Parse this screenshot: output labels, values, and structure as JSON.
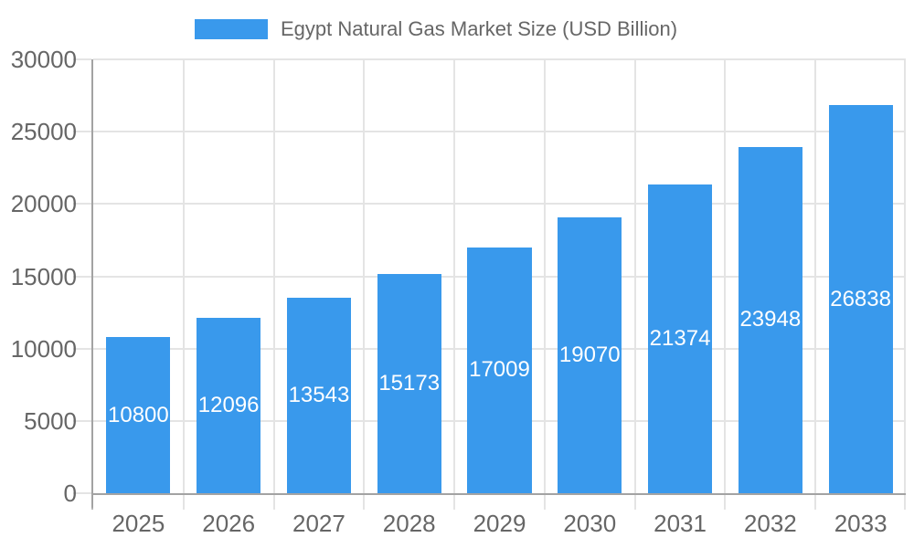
{
  "legend": {
    "label": "Egypt Natural Gas Market Size (USD Billion)"
  },
  "chart_data": {
    "type": "bar",
    "title": "Egypt Natural Gas Market Size (USD Billion)",
    "categories": [
      "2025",
      "2026",
      "2027",
      "2028",
      "2029",
      "2030",
      "2031",
      "2032",
      "2033"
    ],
    "values": [
      10800,
      12096,
      13543,
      15173,
      17009,
      19070,
      21374,
      23948,
      26838
    ],
    "series": [
      {
        "name": "Egypt Natural Gas Market Size (USD Billion)",
        "values": [
          10800,
          12096,
          13543,
          15173,
          17009,
          19070,
          21374,
          23948,
          26838
        ]
      }
    ],
    "xlabel": "",
    "ylabel": "",
    "ylim": [
      0,
      30000
    ],
    "yticks": [
      0,
      5000,
      10000,
      15000,
      20000,
      25000,
      30000
    ],
    "grid": true,
    "legend_position": "top",
    "value_labels_position": "inside-center",
    "bar_width_fraction": 0.71
  },
  "colors": {
    "bar": "#3999EC",
    "value_label": "#FFFFFF",
    "gridline": "#E4E4E4",
    "axis_line": "#A3A3A3",
    "tick": "#E4E4E4",
    "first_x_tick": "#B5B5B5",
    "tick_label": "#666666",
    "legend_text": "#666666",
    "background": "#FFFFFF"
  }
}
